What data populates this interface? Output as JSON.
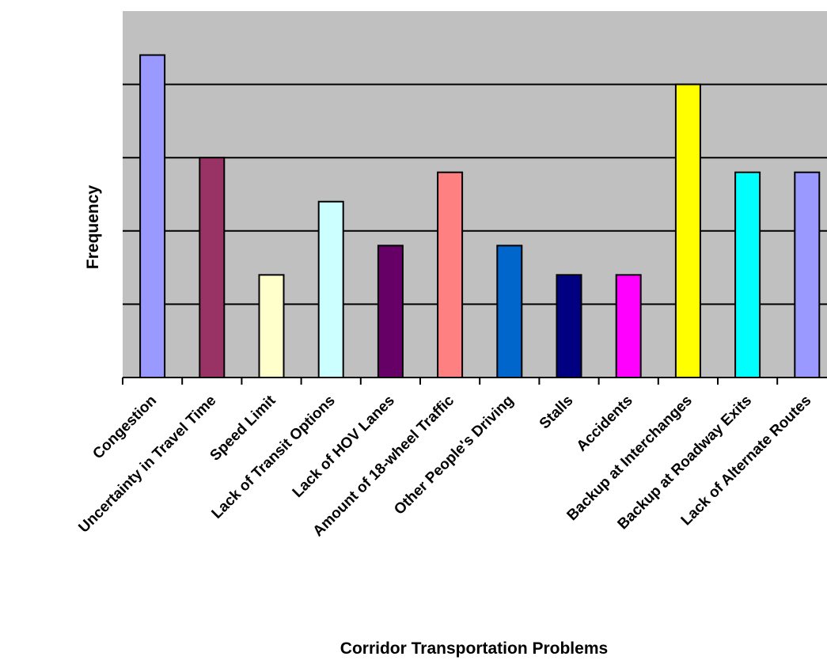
{
  "chart_data": {
    "type": "bar",
    "title": "",
    "xlabel": "Corridor Transportation Problems",
    "ylabel": "Frequency",
    "categories": [
      "Congestion",
      "Uncertainty in Travel Time",
      "Speed Limit",
      "Lack of Transit Options",
      "Lack of HOV Lanes",
      "Amount of 18-wheel Traffic",
      "Other People's Driving",
      "Stalls",
      "Accidents",
      "Backup at Interchanges",
      "Backup at Roadway Exits",
      "Lack of Alternate Routes"
    ],
    "values": [
      22,
      15,
      7,
      12,
      9,
      14,
      9,
      7,
      7,
      20,
      14,
      14
    ],
    "colors": [
      "#9999FF",
      "#993366",
      "#FFFFCC",
      "#CCFFFF",
      "#660066",
      "#FF8080",
      "#0066CC",
      "#000080",
      "#FF00FF",
      "#FFFF00",
      "#00FFFF",
      "#9999FF"
    ],
    "ylim": [
      0,
      25
    ],
    "y_gridlines": [
      5,
      10,
      15,
      20
    ],
    "grid": true,
    "plot_background": "#C0C0C0",
    "legend": "none"
  }
}
